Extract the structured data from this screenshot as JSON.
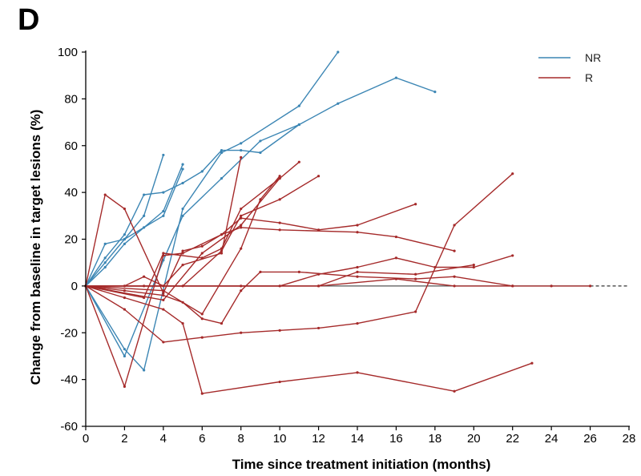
{
  "panel_label": "D",
  "chart_data": {
    "type": "line",
    "xlabel": "Time since treatment initiation (months)",
    "ylabel": "Change from baseline in target lesions (%)",
    "xlim": [
      0,
      28
    ],
    "ylim": [
      -60,
      100
    ],
    "x_ticks": [
      0,
      2,
      4,
      6,
      8,
      10,
      12,
      14,
      16,
      18,
      20,
      22,
      24,
      26,
      28
    ],
    "y_ticks": [
      -60,
      -40,
      -20,
      0,
      20,
      40,
      60,
      80,
      100
    ],
    "legend_position": "top-right",
    "legend": [
      {
        "name": "NR",
        "color": "#3c86b4"
      },
      {
        "name": "R",
        "color": "#a52a2a"
      }
    ],
    "reference_line": {
      "y": 0,
      "x_end": 28,
      "style": "dashed-beyond-26"
    },
    "series": [
      {
        "group": "NR",
        "color": "#3c86b4",
        "points": [
          [
            0,
            0
          ],
          [
            1,
            12
          ],
          [
            2,
            22
          ],
          [
            3,
            39
          ],
          [
            4,
            40
          ],
          [
            5,
            44
          ],
          [
            6,
            49
          ],
          [
            7,
            58
          ],
          [
            8,
            58
          ],
          [
            9,
            57
          ],
          [
            11,
            69
          ]
        ]
      },
      {
        "group": "NR",
        "color": "#3c86b4",
        "points": [
          [
            0,
            0
          ],
          [
            1,
            10
          ],
          [
            2,
            20
          ],
          [
            3,
            30
          ],
          [
            4,
            56
          ]
        ]
      },
      {
        "group": "NR",
        "color": "#3c86b4",
        "points": [
          [
            0,
            0
          ],
          [
            1,
            18
          ],
          [
            2,
            20
          ],
          [
            3,
            25
          ],
          [
            4,
            30
          ],
          [
            5,
            50
          ]
        ]
      },
      {
        "group": "NR",
        "color": "#3c86b4",
        "points": [
          [
            0,
            0
          ],
          [
            2,
            -27
          ],
          [
            3,
            -36
          ],
          [
            5,
            33
          ],
          [
            7,
            57
          ],
          [
            8,
            61
          ],
          [
            11,
            77
          ],
          [
            13,
            100
          ]
        ]
      },
      {
        "group": "NR",
        "color": "#3c86b4",
        "points": [
          [
            0,
            0
          ],
          [
            2,
            -30
          ],
          [
            4,
            11
          ],
          [
            5,
            30
          ],
          [
            7,
            46
          ],
          [
            9,
            62
          ],
          [
            11,
            69
          ],
          [
            13,
            78
          ],
          [
            16,
            89
          ],
          [
            18,
            83
          ]
        ]
      },
      {
        "group": "NR",
        "color": "#3c86b4",
        "points": [
          [
            0,
            0
          ],
          [
            1,
            8
          ],
          [
            2,
            18
          ],
          [
            4,
            32
          ],
          [
            5,
            52
          ]
        ]
      },
      {
        "group": "R",
        "color": "#a52a2a",
        "points": [
          [
            0,
            0
          ],
          [
            1,
            39
          ],
          [
            2,
            33
          ],
          [
            4,
            -3
          ],
          [
            5,
            15
          ],
          [
            6,
            17
          ],
          [
            7,
            22
          ],
          [
            8,
            29
          ],
          [
            10,
            27
          ],
          [
            12,
            24
          ],
          [
            14,
            26
          ],
          [
            17,
            35
          ]
        ]
      },
      {
        "group": "R",
        "color": "#a52a2a",
        "points": [
          [
            0,
            0
          ],
          [
            2,
            -43
          ],
          [
            4,
            13
          ],
          [
            5,
            14
          ],
          [
            7,
            22
          ],
          [
            8,
            25
          ],
          [
            10,
            24
          ],
          [
            14,
            23
          ],
          [
            16,
            21
          ],
          [
            19,
            15
          ]
        ]
      },
      {
        "group": "R",
        "color": "#a52a2a",
        "points": [
          [
            0,
            0
          ],
          [
            2,
            -10
          ],
          [
            4,
            -24
          ],
          [
            6,
            -22
          ],
          [
            8,
            -20
          ],
          [
            10,
            -19
          ],
          [
            12,
            -18
          ],
          [
            14,
            -16
          ],
          [
            17,
            -11
          ],
          [
            19,
            26
          ],
          [
            22,
            48
          ]
        ]
      },
      {
        "group": "R",
        "color": "#a52a2a",
        "points": [
          [
            0,
            0
          ],
          [
            2,
            -5
          ],
          [
            4,
            -10
          ],
          [
            5,
            -16
          ],
          [
            6,
            -46
          ],
          [
            10,
            -41
          ],
          [
            14,
            -37
          ],
          [
            19,
            -45
          ],
          [
            23,
            -33
          ]
        ]
      },
      {
        "group": "R",
        "color": "#a52a2a",
        "points": [
          [
            0,
            0
          ],
          [
            2,
            -2
          ],
          [
            4,
            -4
          ],
          [
            5,
            -7
          ],
          [
            6,
            -14
          ],
          [
            7,
            -16
          ],
          [
            8,
            -2
          ],
          [
            9,
            6
          ],
          [
            11,
            6
          ],
          [
            14,
            4
          ],
          [
            17,
            3
          ],
          [
            19,
            4
          ],
          [
            22,
            0
          ]
        ]
      },
      {
        "group": "R",
        "color": "#a52a2a",
        "points": [
          [
            0,
            0
          ],
          [
            3,
            -5
          ],
          [
            4,
            14
          ],
          [
            6,
            12
          ],
          [
            7,
            16
          ],
          [
            8,
            33
          ],
          [
            10,
            46
          ]
        ]
      },
      {
        "group": "R",
        "color": "#a52a2a",
        "points": [
          [
            0,
            0
          ],
          [
            2,
            0
          ],
          [
            3,
            4
          ],
          [
            4,
            0
          ],
          [
            5,
            9
          ],
          [
            7,
            14
          ],
          [
            8,
            55
          ]
        ]
      },
      {
        "group": "R",
        "color": "#a52a2a",
        "points": [
          [
            0,
            0
          ],
          [
            4,
            -2
          ],
          [
            6,
            -12
          ],
          [
            8,
            16
          ],
          [
            9,
            37
          ],
          [
            10,
            47
          ]
        ]
      },
      {
        "group": "R",
        "color": "#a52a2a",
        "points": [
          [
            0,
            0
          ],
          [
            3,
            0
          ],
          [
            5,
            0
          ],
          [
            7,
            15
          ],
          [
            8,
            30
          ],
          [
            10,
            37
          ],
          [
            12,
            47
          ]
        ]
      },
      {
        "group": "R",
        "color": "#a52a2a",
        "points": [
          [
            0,
            0
          ],
          [
            4,
            -6
          ],
          [
            6,
            14
          ],
          [
            8,
            26
          ],
          [
            10,
            46
          ],
          [
            11,
            53
          ]
        ]
      },
      {
        "group": "R",
        "color": "#a52a2a",
        "points": [
          [
            0,
            0
          ],
          [
            8,
            0
          ],
          [
            10,
            0
          ],
          [
            12,
            5
          ],
          [
            14,
            8
          ],
          [
            16,
            12
          ],
          [
            18,
            8
          ],
          [
            20,
            8
          ],
          [
            22,
            13
          ]
        ]
      },
      {
        "group": "R",
        "color": "#a52a2a",
        "points": [
          [
            0,
            0
          ],
          [
            12,
            0
          ],
          [
            14,
            6
          ],
          [
            17,
            5
          ],
          [
            20,
            9
          ]
        ]
      },
      {
        "group": "R",
        "color": "#a52a2a",
        "points": [
          [
            0,
            0
          ],
          [
            12,
            0
          ],
          [
            16,
            3
          ],
          [
            19,
            0
          ],
          [
            22,
            0
          ],
          [
            24,
            0
          ],
          [
            26,
            0
          ]
        ]
      }
    ]
  }
}
